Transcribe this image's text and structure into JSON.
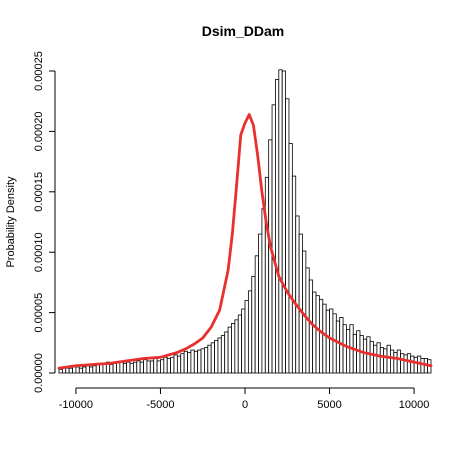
{
  "chart_data": {
    "type": "bar",
    "title": "Dsim_DDam",
    "xlabel": "",
    "ylabel": "Probability Density",
    "xlim": [
      -11000,
      11000
    ],
    "ylim": [
      0,
      0.00025
    ],
    "x_ticks": [
      -10000,
      -5000,
      0,
      5000,
      10000
    ],
    "x_tick_labels": [
      "-10000",
      "-5000",
      "0",
      "5000",
      "10000"
    ],
    "y_ticks": [
      0,
      5e-05,
      0.0001,
      0.00015,
      0.0002,
      0.00025
    ],
    "y_tick_labels": [
      "0.00000",
      "0.00005",
      "0.00010",
      "0.00015",
      "0.00020",
      "0.00025"
    ],
    "bin_width": 200,
    "bin_start": -11000,
    "histogram_values": [
      3e-06,
      4e-06,
      4e-06,
      4e-06,
      5e-06,
      5e-06,
      4e-06,
      5e-06,
      6e-06,
      5e-06,
      6e-06,
      8e-06,
      7e-06,
      7e-06,
      9e-06,
      7e-06,
      8e-06,
      9e-06,
      9e-06,
      8e-06,
      9e-06,
      8e-06,
      9e-06,
      1e-05,
      9e-06,
      1.1e-05,
      1e-05,
      1e-05,
      1.3e-05,
      1e-05,
      1.1e-05,
      1.3e-05,
      1.2e-05,
      1.3e-05,
      1.5e-05,
      1.4e-05,
      1.6e-05,
      1.8e-05,
      1.7e-05,
      1.9e-05,
      1.8e-05,
      1.9e-05,
      2e-05,
      2.1e-05,
      2.3e-05,
      2.5e-05,
      2.7e-05,
      2.9e-05,
      3.1e-05,
      3.4e-05,
      3.8e-05,
      4.1e-05,
      4.4e-05,
      4.8e-05,
      5.3e-05,
      6e-05,
      6.8e-05,
      8e-05,
      9.7e-05,
      0.000115,
      0.000136,
      0.000162,
      0.000193,
      0.000222,
      0.000243,
      0.000251,
      0.00025,
      0.000227,
      0.00019,
      0.000163,
      0.00013,
      0.000115,
      0.000101,
      8.7e-05,
      7.7e-05,
      6.7e-05,
      6.4e-05,
      6.1e-05,
      5.7e-05,
      5.2e-05,
      5.3e-05,
      4.9e-05,
      4.3e-05,
      4.6e-05,
      4e-05,
      3.6e-05,
      4e-05,
      3.2e-05,
      3.5e-05,
      3.1e-05,
      2.8e-05,
      3e-05,
      2.6e-05,
      2.3e-05,
      2.5e-05,
      2.1e-05,
      2e-05,
      2.3e-05,
      1.9e-05,
      1.7e-05,
      1.9e-05,
      1.6e-05,
      1.5e-05,
      1.6e-05,
      1.4e-05,
      1.3e-05,
      1.4e-05,
      1.2e-05,
      1.2e-05,
      1.1e-05,
      1.2e-05,
      1e-05
    ],
    "density_curve": {
      "color": "#e8302e",
      "x": [
        -11000,
        -10000,
        -9000,
        -8000,
        -7000,
        -6000,
        -5000,
        -4500,
        -4000,
        -3500,
        -3000,
        -2500,
        -2000,
        -1500,
        -1000,
        -750,
        -500,
        -250,
        0,
        250,
        500,
        750,
        1000,
        1250,
        1500,
        2000,
        2500,
        3000,
        3500,
        4000,
        4500,
        5000,
        6000,
        7000,
        8000,
        9000,
        10000,
        11000
      ],
      "y": [
        4e-06,
        6e-06,
        7e-06,
        8e-06,
        1e-05,
        1.2e-05,
        1.3e-05,
        1.5e-05,
        1.7e-05,
        2e-05,
        2.4e-05,
        2.9e-05,
        3.8e-05,
        5.2e-05,
        8.5e-05,
        0.000115,
        0.000155,
        0.000197,
        0.000207,
        0.000214,
        0.000205,
        0.00018,
        0.00015,
        0.000125,
        0.000105,
        8e-05,
        6.7e-05,
        5.7e-05,
        4.8e-05,
        4e-05,
        3.4e-05,
        2.9e-05,
        2.2e-05,
        1.7e-05,
        1.4e-05,
        1.2e-05,
        9e-06,
        6e-06
      ]
    }
  }
}
